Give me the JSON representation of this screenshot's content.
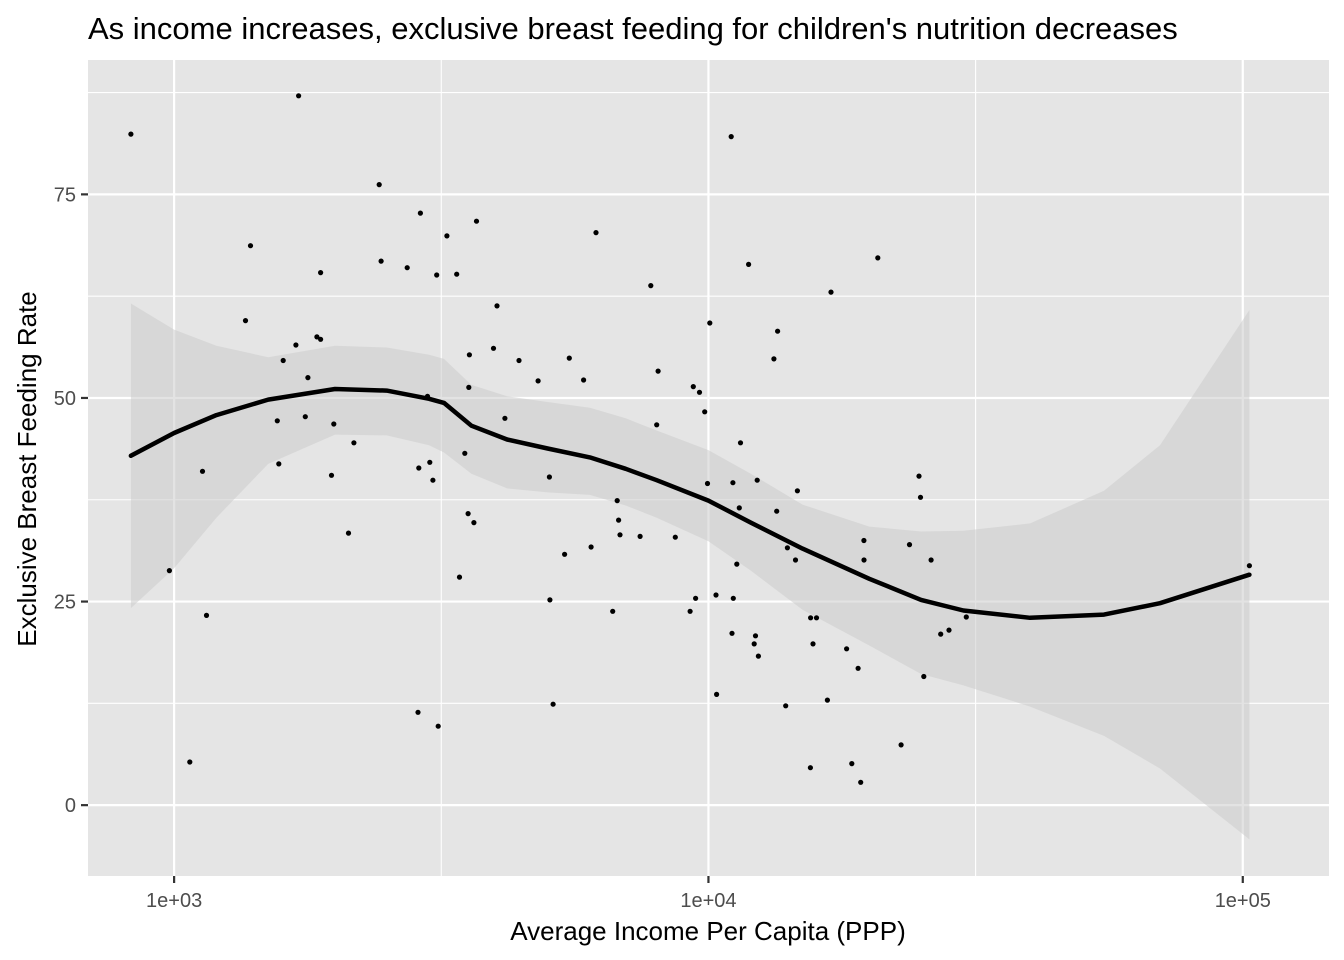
{
  "chart_data": {
    "type": "scatter",
    "title": "As income increases, exclusive breast feeding for children's nutrition decreases",
    "xlabel": "Average Income Per Capita (PPP)",
    "ylabel": "Exclusive Breast Feeding Rate",
    "x_scale": "log10",
    "xlim": [
      690,
      145000
    ],
    "ylim": [
      -8.7,
      91.5
    ],
    "x_ticks": [
      {
        "value": 1000,
        "label": "1e+03"
      },
      {
        "value": 10000,
        "label": "1e+04"
      },
      {
        "value": 100000,
        "label": "1e+05"
      }
    ],
    "y_ticks": [
      {
        "value": 0,
        "label": "0"
      },
      {
        "value": 25,
        "label": "25"
      },
      {
        "value": 50,
        "label": "50"
      },
      {
        "value": 75,
        "label": "75"
      }
    ],
    "grid": true,
    "legend": "none",
    "colors": {
      "panel": "#e5e5e5",
      "grid": "#ffffff",
      "points": "#000000",
      "smooth_line": "#000000",
      "ribbon": "#cccccc"
    },
    "points": [
      {
        "x": 830,
        "y": 82.4
      },
      {
        "x": 980,
        "y": 28.8
      },
      {
        "x": 1070,
        "y": 5.3
      },
      {
        "x": 1130,
        "y": 41.0
      },
      {
        "x": 1150,
        "y": 23.3
      },
      {
        "x": 1360,
        "y": 59.5
      },
      {
        "x": 1390,
        "y": 68.7
      },
      {
        "x": 1560,
        "y": 47.2
      },
      {
        "x": 1570,
        "y": 41.9
      },
      {
        "x": 1600,
        "y": 54.6
      },
      {
        "x": 1690,
        "y": 56.5
      },
      {
        "x": 1710,
        "y": 87.1
      },
      {
        "x": 1760,
        "y": 47.7
      },
      {
        "x": 1780,
        "y": 52.5
      },
      {
        "x": 1850,
        "y": 57.5
      },
      {
        "x": 1880,
        "y": 57.2
      },
      {
        "x": 1880,
        "y": 65.4
      },
      {
        "x": 1970,
        "y": 40.5
      },
      {
        "x": 1990,
        "y": 46.8
      },
      {
        "x": 2120,
        "y": 33.4
      },
      {
        "x": 2170,
        "y": 44.5
      },
      {
        "x": 2420,
        "y": 76.2
      },
      {
        "x": 2440,
        "y": 66.8
      },
      {
        "x": 2730,
        "y": 66.0
      },
      {
        "x": 2860,
        "y": 11.4
      },
      {
        "x": 2870,
        "y": 41.4
      },
      {
        "x": 2890,
        "y": 72.7
      },
      {
        "x": 2980,
        "y": 50.2
      },
      {
        "x": 3010,
        "y": 42.1
      },
      {
        "x": 3050,
        "y": 39.9
      },
      {
        "x": 3100,
        "y": 65.1
      },
      {
        "x": 3120,
        "y": 9.7
      },
      {
        "x": 3240,
        "y": 69.9
      },
      {
        "x": 3380,
        "y": 65.2
      },
      {
        "x": 3420,
        "y": 28.0
      },
      {
        "x": 3500,
        "y": 43.2
      },
      {
        "x": 3550,
        "y": 35.8
      },
      {
        "x": 3560,
        "y": 51.3
      },
      {
        "x": 3570,
        "y": 55.3
      },
      {
        "x": 3640,
        "y": 34.7
      },
      {
        "x": 3680,
        "y": 71.7
      },
      {
        "x": 3960,
        "y": 56.1
      },
      {
        "x": 4020,
        "y": 61.3
      },
      {
        "x": 4160,
        "y": 47.5
      },
      {
        "x": 4420,
        "y": 54.6
      },
      {
        "x": 4800,
        "y": 52.1
      },
      {
        "x": 5040,
        "y": 40.3
      },
      {
        "x": 5050,
        "y": 25.2
      },
      {
        "x": 5120,
        "y": 12.4
      },
      {
        "x": 5380,
        "y": 30.8
      },
      {
        "x": 5490,
        "y": 54.9
      },
      {
        "x": 5840,
        "y": 52.2
      },
      {
        "x": 6030,
        "y": 31.7
      },
      {
        "x": 6160,
        "y": 70.3
      },
      {
        "x": 6620,
        "y": 23.8
      },
      {
        "x": 6750,
        "y": 37.4
      },
      {
        "x": 6790,
        "y": 35.0
      },
      {
        "x": 6830,
        "y": 33.2
      },
      {
        "x": 7450,
        "y": 33.0
      },
      {
        "x": 7800,
        "y": 63.8
      },
      {
        "x": 8000,
        "y": 46.7
      },
      {
        "x": 8050,
        "y": 53.3
      },
      {
        "x": 8670,
        "y": 32.9
      },
      {
        "x": 9240,
        "y": 23.8
      },
      {
        "x": 9370,
        "y": 51.4
      },
      {
        "x": 9460,
        "y": 25.4
      },
      {
        "x": 9620,
        "y": 50.7
      },
      {
        "x": 9840,
        "y": 48.3
      },
      {
        "x": 9960,
        "y": 39.5
      },
      {
        "x": 10060,
        "y": 59.2
      },
      {
        "x": 10330,
        "y": 25.8
      },
      {
        "x": 10360,
        "y": 13.6
      },
      {
        "x": 11030,
        "y": 82.1
      },
      {
        "x": 11070,
        "y": 21.1
      },
      {
        "x": 11110,
        "y": 39.6
      },
      {
        "x": 11130,
        "y": 25.4
      },
      {
        "x": 11300,
        "y": 29.6
      },
      {
        "x": 11420,
        "y": 36.5
      },
      {
        "x": 11480,
        "y": 44.5
      },
      {
        "x": 11890,
        "y": 66.4
      },
      {
        "x": 12180,
        "y": 19.8
      },
      {
        "x": 12250,
        "y": 20.8
      },
      {
        "x": 12340,
        "y": 39.9
      },
      {
        "x": 12400,
        "y": 18.3
      },
      {
        "x": 13260,
        "y": 54.8
      },
      {
        "x": 13420,
        "y": 36.1
      },
      {
        "x": 13470,
        "y": 58.2
      },
      {
        "x": 13950,
        "y": 12.2
      },
      {
        "x": 14050,
        "y": 31.6
      },
      {
        "x": 14550,
        "y": 30.1
      },
      {
        "x": 14670,
        "y": 38.6
      },
      {
        "x": 15520,
        "y": 4.6
      },
      {
        "x": 15530,
        "y": 23.0
      },
      {
        "x": 15690,
        "y": 19.8
      },
      {
        "x": 15930,
        "y": 23.0
      },
      {
        "x": 16700,
        "y": 12.9
      },
      {
        "x": 16960,
        "y": 63.0
      },
      {
        "x": 18140,
        "y": 19.2
      },
      {
        "x": 18550,
        "y": 5.1
      },
      {
        "x": 19060,
        "y": 16.8
      },
      {
        "x": 19270,
        "y": 2.8
      },
      {
        "x": 19540,
        "y": 32.5
      },
      {
        "x": 19550,
        "y": 30.1
      },
      {
        "x": 20750,
        "y": 67.2
      },
      {
        "x": 22940,
        "y": 7.4
      },
      {
        "x": 23780,
        "y": 32.0
      },
      {
        "x": 24780,
        "y": 40.4
      },
      {
        "x": 24940,
        "y": 37.8
      },
      {
        "x": 25300,
        "y": 15.8
      },
      {
        "x": 26100,
        "y": 30.1
      },
      {
        "x": 27210,
        "y": 21.0
      },
      {
        "x": 28200,
        "y": 21.5
      },
      {
        "x": 30380,
        "y": 23.1
      },
      {
        "x": 102900,
        "y": 29.4
      }
    ],
    "smooth": {
      "x": [
        830,
        1000,
        1200,
        1500,
        2000,
        2500,
        3000,
        3200,
        3600,
        4200,
        5000,
        6000,
        7000,
        8000,
        10000,
        12000,
        15000,
        20000,
        25000,
        30000,
        40000,
        55000,
        70000,
        102900
      ],
      "y": [
        42.9,
        45.7,
        47.9,
        49.8,
        51.1,
        50.9,
        49.9,
        49.4,
        46.6,
        44.9,
        43.8,
        42.7,
        41.3,
        39.9,
        37.4,
        34.7,
        31.5,
        27.8,
        25.2,
        23.9,
        23.0,
        23.4,
        24.8,
        28.3
      ],
      "lo": [
        24.2,
        29.1,
        35.3,
        41.9,
        45.5,
        45.4,
        44.2,
        43.3,
        40.7,
        38.9,
        38.4,
        38.1,
        36.8,
        35.3,
        32.4,
        28.8,
        24.0,
        19.6,
        16.1,
        14.7,
        12.1,
        8.5,
        4.5,
        -4.2
      ],
      "hi": [
        61.6,
        58.4,
        56.4,
        55.0,
        56.4,
        56.2,
        55.3,
        54.8,
        51.6,
        50.2,
        49.5,
        48.8,
        47.5,
        46.0,
        43.6,
        40.7,
        36.9,
        34.2,
        33.6,
        33.7,
        34.6,
        38.6,
        44.2,
        60.8
      ]
    }
  }
}
